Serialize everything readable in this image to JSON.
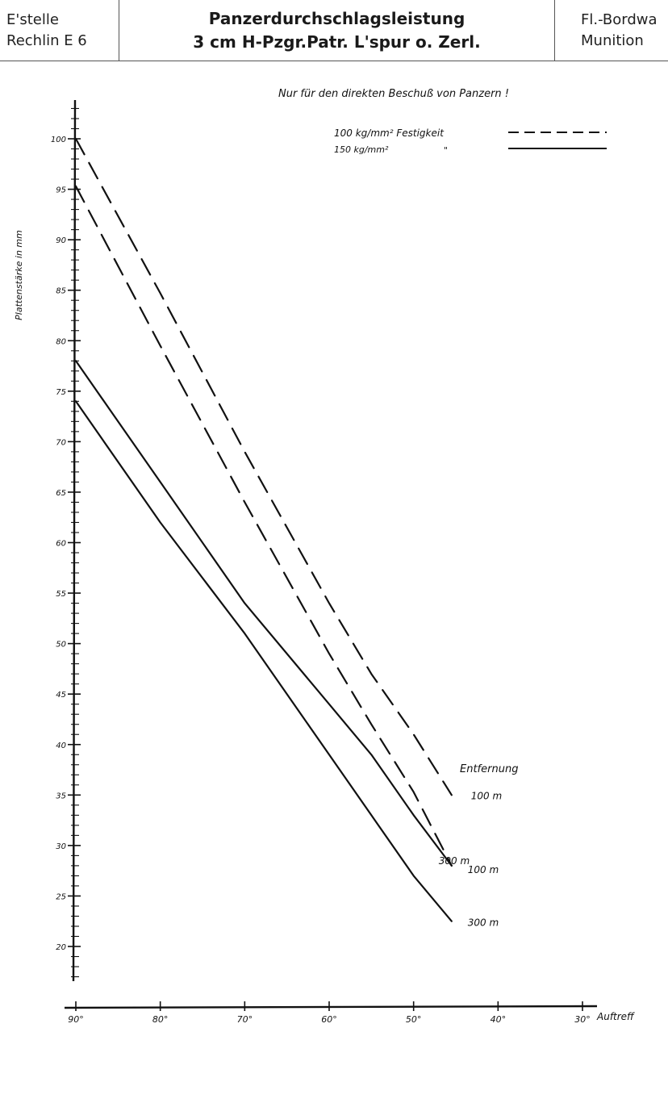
{
  "header": {
    "left_line1": "E'stelle",
    "left_line2": "Rechlin E 6",
    "title_line1": "Panzerdurchschlagsleistung",
    "title_line2": "3 cm H-Pzgr.Patr. L'spur o. Zerl.",
    "right_line1": "Fl.-Bordwa",
    "right_line2": "Munition"
  },
  "chart_data": {
    "type": "line",
    "title": "Nur für den direkten Beschuß von Panzern !",
    "xlabel": "Auftreff",
    "ylabel": "Plattenstärke in mm",
    "xlim": [
      90,
      30
    ],
    "ylim": [
      20,
      100
    ],
    "x_ticks": [
      90,
      80,
      70,
      60,
      50,
      40,
      30
    ],
    "x_tick_labels": [
      "90°",
      "80°",
      "70°",
      "60°",
      "50°",
      "40°",
      "30°"
    ],
    "y_ticks": [
      20,
      25,
      30,
      35,
      40,
      45,
      50,
      55,
      60,
      65,
      70,
      75,
      80,
      85,
      90,
      95,
      100
    ],
    "y_tick_labels": [
      "20",
      "25",
      "30",
      "35",
      "40",
      "45",
      "50",
      "55",
      "60",
      "65",
      "70",
      "75",
      "80",
      "85",
      "90",
      "95",
      "100"
    ],
    "legend": [
      {
        "label": "100 kg/mm² Festigkeit",
        "style": "dashed"
      },
      {
        "label": "150 kg/mm²",
        "ditto": "\"",
        "style": "solid"
      }
    ],
    "annotation_entfernung": "Entfernung",
    "series": [
      {
        "label": "100 m",
        "style": "dashed",
        "points": [
          [
            90,
            100
          ],
          [
            80,
            84.7
          ],
          [
            70,
            69
          ],
          [
            60,
            54
          ],
          [
            55,
            47
          ],
          [
            50,
            41
          ],
          [
            45.5,
            35
          ]
        ]
      },
      {
        "label": "300 m",
        "style": "dashed",
        "points": [
          [
            90,
            95.3
          ],
          [
            80,
            79.5
          ],
          [
            70,
            64
          ],
          [
            60,
            49
          ],
          [
            55,
            42
          ],
          [
            50,
            35.3
          ],
          [
            45.5,
            28
          ]
        ]
      },
      {
        "label": "100 m",
        "style": "solid",
        "points": [
          [
            90,
            78
          ],
          [
            80,
            66
          ],
          [
            70,
            54
          ],
          [
            60,
            44
          ],
          [
            55,
            39
          ],
          [
            50,
            33
          ],
          [
            45.5,
            28
          ]
        ]
      },
      {
        "label": "300 m",
        "style": "solid",
        "points": [
          [
            90,
            74
          ],
          [
            80,
            62
          ],
          [
            70,
            51
          ],
          [
            60,
            39
          ],
          [
            55,
            33
          ],
          [
            50,
            27
          ],
          [
            45.5,
            22.5
          ]
        ]
      }
    ],
    "grid": false,
    "legend_position": "top-right"
  }
}
